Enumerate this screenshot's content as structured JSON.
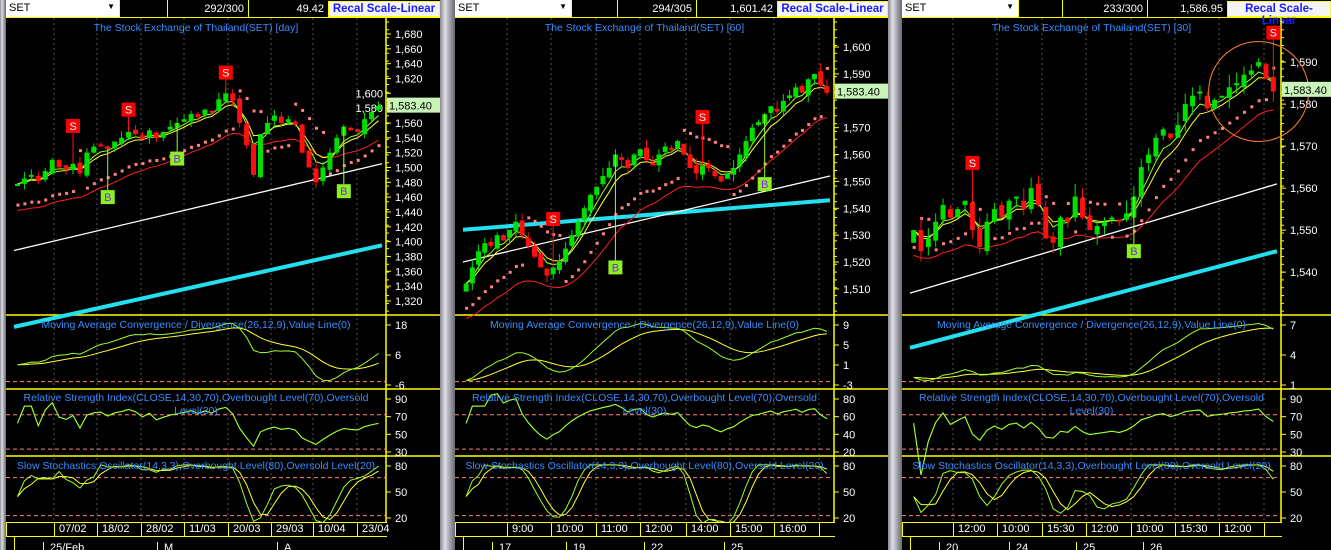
{
  "colors": {
    "up": "#00e000",
    "down": "#ff1010",
    "ma_fast": "#9aff2a",
    "ma_mid": "#ffff30",
    "ma_slow": "#ff2020",
    "ma_long": "#ffffff",
    "ma_longest": "#22e0f0",
    "sar": "#ff8080",
    "title": "#3a8cff",
    "axis": "#ffff00",
    "price_label_bg": "#c8f4b8"
  },
  "oscillator_titles": {
    "macd": "Moving Average Convergence / Divergence(26,12,9),Value Line(0)",
    "rsi_1": "Relative Strength Index(CLOSE,14,30,70),Overbought Level(70),Oversold",
    "rsi_2": "Level(30)",
    "stoch": "Slow Stochastics Oscillator(14,3,3),Overbought Level(80),Oversold Level(20)"
  },
  "panels": [
    {
      "symbol": "SET",
      "counter": "292/300",
      "value": "49.42",
      "button": "Recal Scale-Linear",
      "title": "The Stock Exchange of Thailand(SET) [day]",
      "last_price": 1583.4,
      "last_price_label": "1,583.40",
      "ylim": [
        1301,
        1701.6
      ],
      "yticks": [
        "1,680",
        "1,660",
        "1,640",
        "1,620",
        "1,600",
        "1,580",
        "1,560",
        "1,540",
        "1,520",
        "1,500",
        "1,480",
        "1,460",
        "1,440",
        "1,420",
        "1,400",
        "1,380",
        "1,360",
        "1,340",
        "1,320"
      ],
      "yticks_values": [
        1680,
        1660,
        1640,
        1620,
        1600,
        1580,
        1560,
        1540,
        1520,
        1500,
        1480,
        1460,
        1440,
        1420,
        1400,
        1380,
        1360,
        1340,
        1320
      ],
      "closes": [
        1478,
        1485,
        1490,
        1482,
        1495,
        1510,
        1500,
        1498,
        1505,
        1492,
        1520,
        1528,
        1530,
        1525,
        1535,
        1540,
        1548,
        1545,
        1538,
        1550,
        1540,
        1548,
        1555,
        1560,
        1565,
        1572,
        1568,
        1578,
        1575,
        1592,
        1600,
        1590,
        1560,
        1530,
        1490,
        1545,
        1560,
        1570,
        1560,
        1565,
        1558,
        1520,
        1500,
        1480,
        1500,
        1520,
        1540,
        1555,
        1550,
        1548,
        1565,
        1575,
        1583
      ],
      "long_ma": [
        1388,
        1505
      ],
      "longest_ma": [
        1285,
        1395
      ],
      "signals": [
        {
          "t": "S",
          "bar": 8,
          "price": 1556
        },
        {
          "t": "B",
          "bar": 13,
          "price": 1460
        },
        {
          "t": "S",
          "bar": 16,
          "price": 1578
        },
        {
          "t": "B",
          "bar": 23,
          "price": 1512
        },
        {
          "t": "S",
          "bar": 30,
          "price": 1628
        },
        {
          "t": "B",
          "bar": 47,
          "price": 1468
        }
      ],
      "macd_ticks": [
        "18",
        "6",
        "-6"
      ],
      "rsi_ticks": [
        "90",
        "70",
        "50",
        "30"
      ],
      "stoch_ticks": [
        "80",
        "50",
        "20"
      ],
      "dates": [
        "07/02",
        "18/02",
        "28/02",
        "11/03",
        "20/03",
        "29/03",
        "10/04",
        "23/04"
      ],
      "bottom": [
        "25/Feb",
        "M",
        "A"
      ]
    },
    {
      "symbol": "SET",
      "counter": "294/305",
      "value": "1,601.42",
      "button": "Recal Scale-Linear",
      "title": "The Stock Exchange of Thailand(SET) [60]",
      "last_price": 1583.4,
      "last_price_label": "1,583.40",
      "ylim": [
        1500.3,
        1610.8
      ],
      "yticks": [
        "1,600",
        "1,590",
        "1,570",
        "1,560",
        "1,550",
        "1,540",
        "1,530",
        "1,520",
        "1,510"
      ],
      "yticks_values": [
        1600,
        1590,
        1570,
        1560,
        1550,
        1540,
        1530,
        1520,
        1510
      ],
      "closes": [
        1512,
        1518,
        1524,
        1527,
        1526,
        1530,
        1528,
        1532,
        1535,
        1530,
        1526,
        1522,
        1518,
        1515,
        1518,
        1520,
        1525,
        1530,
        1535,
        1540,
        1545,
        1548,
        1552,
        1555,
        1560,
        1558,
        1555,
        1560,
        1562,
        1558,
        1556,
        1560,
        1563,
        1562,
        1565,
        1560,
        1555,
        1553,
        1556,
        1555,
        1552,
        1550,
        1553,
        1555,
        1560,
        1565,
        1570,
        1572,
        1575,
        1578,
        1576,
        1580,
        1582,
        1585,
        1583,
        1588,
        1590,
        1586,
        1583
      ],
      "long_ma": [
        1520,
        1552
      ],
      "longest_ma": [
        1532,
        1543
      ],
      "signals": [
        {
          "t": "S",
          "bar": 14,
          "price": 1536
        },
        {
          "t": "B",
          "bar": 24,
          "price": 1518
        },
        {
          "t": "S",
          "bar": 38,
          "price": 1574
        },
        {
          "t": "B",
          "bar": 48,
          "price": 1549
        }
      ],
      "macd_ticks": [
        "9",
        "5",
        "1",
        "-3"
      ],
      "rsi_ticks": [
        "80",
        "60",
        "40",
        "20"
      ],
      "stoch_ticks": [
        "80",
        "50",
        "20"
      ],
      "dates": [
        "9:00",
        "10:00",
        "11:00",
        "12:00",
        "14:00",
        "15:00",
        "16:00",
        ""
      ],
      "bottom": [
        "17",
        "19",
        "22",
        "25"
      ]
    },
    {
      "symbol": "SET",
      "counter": "233/300",
      "value": "1,586.95",
      "button": "Recal Scale-Linear",
      "title": "The Stock Exchange of Thailand(SET) [30]",
      "last_price": 1583.4,
      "last_price_label": "1,583.40",
      "ylim": [
        1529.8,
        1600.5
      ],
      "yticks": [
        "1,590",
        "1,580",
        "1,570",
        "1,560",
        "1,550",
        "1,540"
      ],
      "yticks_values": [
        1590,
        1580,
        1570,
        1560,
        1550,
        1540
      ],
      "closes": [
        1550,
        1545,
        1548,
        1552,
        1556,
        1553,
        1555,
        1557,
        1550,
        1546,
        1552,
        1555,
        1553,
        1557,
        1558,
        1555,
        1560,
        1556,
        1548,
        1547,
        1553,
        1552,
        1558,
        1553,
        1550,
        1551,
        1552,
        1553,
        1552,
        1554,
        1558,
        1565,
        1568,
        1572,
        1574,
        1572,
        1575,
        1580,
        1582,
        1583,
        1579,
        1581,
        1582,
        1584,
        1585,
        1587,
        1588,
        1590,
        1586,
        1583
      ],
      "long_ma": [
        1535,
        1561
      ],
      "longest_ma": [
        1522,
        1545
      ],
      "signals": [
        {
          "t": "S",
          "bar": 8,
          "price": 1566
        },
        {
          "t": "B",
          "bar": 30,
          "price": 1545
        },
        {
          "t": "S",
          "bar": 49,
          "price": 1597
        }
      ],
      "highlight_circle": true,
      "macd_ticks": [
        "7",
        "4",
        "1"
      ],
      "rsi_ticks": [
        "90",
        "70",
        "50",
        "30"
      ],
      "stoch_ticks": [
        "80",
        "50",
        "20"
      ],
      "dates": [
        "12:00",
        "10:00",
        "15:30",
        "12:00",
        "10:00",
        "15:30",
        "12:00",
        ""
      ],
      "bottom": [
        "20",
        "24",
        "25",
        "26"
      ]
    }
  ]
}
